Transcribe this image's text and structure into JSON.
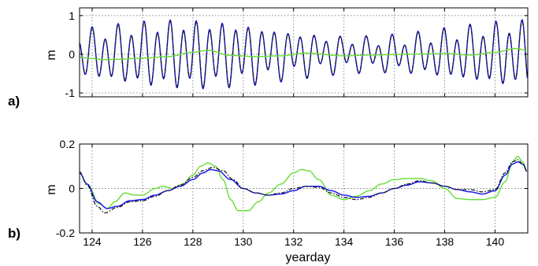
{
  "chart_data": [
    {
      "type": "line",
      "panel_label": "a)",
      "ylabel": "m",
      "xlabel": "",
      "xlim": [
        123.5,
        141.3
      ],
      "ylim": [
        -1.1,
        1.2
      ],
      "yticks": [
        -1,
        0,
        1
      ],
      "ytick_labels": [
        "-1",
        "0",
        "1"
      ],
      "xticks": [
        124,
        126,
        128,
        130,
        132,
        134,
        136,
        138,
        140
      ],
      "grid": true,
      "series": [
        {
          "color": "#1010ee",
          "style": "solid",
          "model": "tide",
          "components": {
            "semidiurnal_period_days": 0.5175,
            "diurnal_period_days": 1.0,
            "sd_amplitude_mean": 0.55,
            "sd_amplitude_modulation": 0.2,
            "modulation_period_days": 14.2,
            "modulation_peak_day": 127.8,
            "diurnal_amplitude": 0.18
          },
          "key_points": [
            [
              124.0,
              0.45
            ],
            [
              125.5,
              -0.85
            ],
            [
              127.9,
              1.15
            ],
            [
              129.6,
              -0.9
            ],
            [
              136.0,
              0.55
            ],
            [
              140.9,
              0.85
            ]
          ]
        },
        {
          "color": "#1a1a1a",
          "style": "dashdot",
          "model": "tide_scaled",
          "scale": 0.97
        },
        {
          "color": "#66dd33",
          "style": "solid",
          "model": "points",
          "x": [
            123.5,
            124.0,
            124.5,
            125.0,
            126.0,
            127.0,
            128.0,
            128.6,
            129.5,
            130.5,
            131.5,
            132.5,
            134.0,
            135.0,
            136.5,
            138.0,
            139.0,
            140.0,
            140.8,
            141.3
          ],
          "y": [
            -0.08,
            -0.11,
            -0.14,
            -0.13,
            -0.1,
            -0.06,
            0.05,
            0.1,
            -0.03,
            -0.06,
            -0.04,
            0.03,
            -0.04,
            -0.02,
            0.0,
            0.02,
            -0.02,
            0.05,
            0.15,
            0.1
          ]
        }
      ]
    },
    {
      "type": "line",
      "panel_label": "b)",
      "ylabel": "m",
      "xlabel": "yearday",
      "xlim": [
        123.5,
        141.3
      ],
      "ylim": [
        -0.2,
        0.2
      ],
      "yticks": [
        -0.2,
        0,
        0.2
      ],
      "ytick_labels": [
        "-0.2",
        "0",
        "0.2"
      ],
      "xticks": [
        124,
        126,
        128,
        130,
        132,
        134,
        136,
        138,
        140
      ],
      "xtick_labels": [
        "124",
        "126",
        "128",
        "130",
        "132",
        "134",
        "136",
        "138",
        "140"
      ],
      "grid": true,
      "series": [
        {
          "color": "#66dd33",
          "style": "solid",
          "model": "points",
          "x": [
            123.5,
            123.8,
            124.3,
            124.6,
            124.9,
            125.3,
            125.7,
            126.0,
            126.5,
            126.8,
            127.2,
            127.6,
            128.0,
            128.3,
            128.6,
            128.9,
            129.2,
            129.5,
            129.8,
            130.2,
            130.6,
            131.0,
            131.5,
            132.0,
            132.3,
            132.6,
            133.0,
            133.5,
            134.0,
            134.5,
            135.0,
            135.5,
            136.0,
            136.5,
            137.0,
            137.5,
            138.0,
            138.5,
            139.0,
            139.5,
            140.0,
            140.4,
            140.7,
            140.9,
            141.1,
            141.3
          ],
          "y": [
            0.07,
            0.02,
            -0.07,
            -0.09,
            -0.06,
            -0.02,
            -0.03,
            -0.03,
            0.0,
            0.01,
            0.0,
            0.02,
            0.06,
            0.1,
            0.115,
            0.1,
            0.04,
            -0.05,
            -0.1,
            -0.1,
            -0.06,
            -0.02,
            0.02,
            0.07,
            0.085,
            0.08,
            0.04,
            -0.03,
            -0.05,
            -0.035,
            -0.01,
            0.02,
            0.04,
            0.045,
            0.045,
            0.035,
            0.0,
            -0.045,
            -0.05,
            -0.05,
            -0.04,
            0.03,
            0.12,
            0.145,
            0.12,
            0.07
          ]
        },
        {
          "color": "#1010ee",
          "style": "solid",
          "model": "points",
          "x": [
            123.5,
            123.8,
            124.2,
            124.6,
            125.0,
            125.5,
            126.0,
            126.5,
            127.0,
            127.5,
            128.0,
            128.4,
            128.7,
            129.0,
            129.5,
            130.0,
            130.5,
            131.0,
            131.5,
            132.0,
            132.5,
            133.0,
            133.5,
            134.0,
            134.5,
            135.0,
            135.5,
            136.0,
            136.5,
            137.0,
            137.5,
            138.0,
            138.5,
            139.0,
            139.5,
            140.0,
            140.4,
            140.7,
            140.9,
            141.1,
            141.3
          ],
          "y": [
            0.07,
            0.02,
            -0.06,
            -0.09,
            -0.08,
            -0.055,
            -0.05,
            -0.03,
            -0.01,
            0.01,
            0.04,
            0.07,
            0.085,
            0.08,
            0.04,
            0.0,
            -0.02,
            -0.03,
            -0.025,
            -0.01,
            0.01,
            0.01,
            -0.01,
            -0.03,
            -0.04,
            -0.035,
            -0.02,
            0.0,
            0.015,
            0.03,
            0.025,
            0.01,
            -0.005,
            -0.015,
            -0.025,
            -0.01,
            0.06,
            0.11,
            0.12,
            0.11,
            0.07
          ]
        },
        {
          "color": "#1a1a1a",
          "style": "dashdot",
          "model": "points",
          "x": [
            123.5,
            123.8,
            124.2,
            124.5,
            125.0,
            125.5,
            126.0,
            126.5,
            127.0,
            127.5,
            128.0,
            128.4,
            128.8,
            129.2,
            129.6,
            130.0,
            130.5,
            131.0,
            131.5,
            132.0,
            132.5,
            133.0,
            133.5,
            134.0,
            134.5,
            135.0,
            135.5,
            136.0,
            136.5,
            137.0,
            137.5,
            138.0,
            138.5,
            139.0,
            139.5,
            140.0,
            140.4,
            140.7,
            140.9,
            141.1,
            141.3
          ],
          "y": [
            0.075,
            0.015,
            -0.08,
            -0.11,
            -0.085,
            -0.06,
            -0.055,
            -0.035,
            -0.01,
            0.015,
            0.05,
            0.08,
            0.095,
            0.08,
            0.04,
            0.0,
            -0.02,
            -0.03,
            -0.02,
            0.0,
            0.01,
            0.005,
            -0.02,
            -0.04,
            -0.05,
            -0.04,
            -0.02,
            0.0,
            0.02,
            0.035,
            0.025,
            0.01,
            -0.005,
            -0.005,
            -0.015,
            -0.005,
            0.07,
            0.12,
            0.13,
            0.11,
            0.07
          ]
        }
      ]
    }
  ]
}
